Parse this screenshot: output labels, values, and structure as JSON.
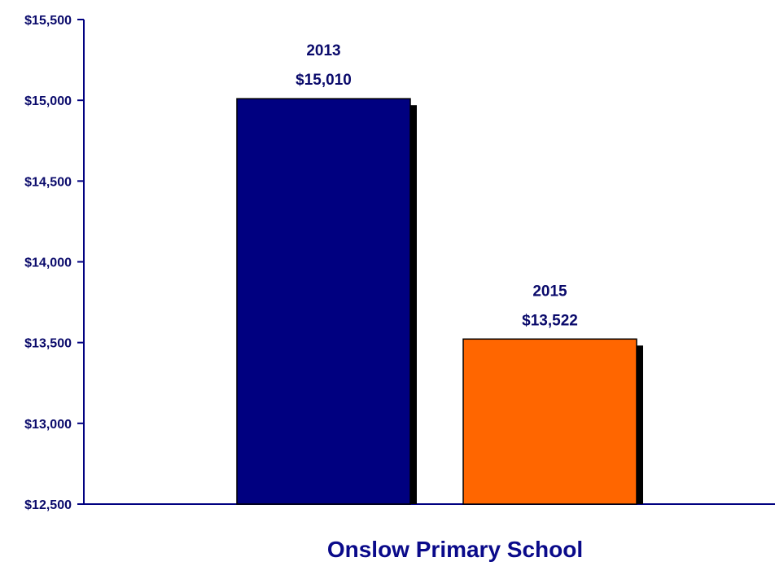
{
  "chart_data": {
    "type": "bar",
    "categories": [
      "Onslow Primary School"
    ],
    "series": [
      {
        "label_year": "2013",
        "label_value": "$15,010",
        "value": 15010,
        "color": "#000080"
      },
      {
        "label_year": "2015",
        "label_value": "$13,522",
        "value": 13522,
        "color": "#ff6600"
      }
    ],
    "title": "",
    "xlabel": "Onslow Primary School",
    "ylabel": "",
    "ylim": [
      12500,
      15500
    ],
    "yticks": [
      12500,
      13000,
      13500,
      14000,
      14500,
      15000,
      15500
    ],
    "ytick_labels": [
      "$12,500",
      "$13,000",
      "$13,500",
      "$14,000",
      "$14,500",
      "$15,000",
      "$15,500"
    ],
    "grid": false,
    "legend": "none",
    "axis_color": "#000080"
  }
}
